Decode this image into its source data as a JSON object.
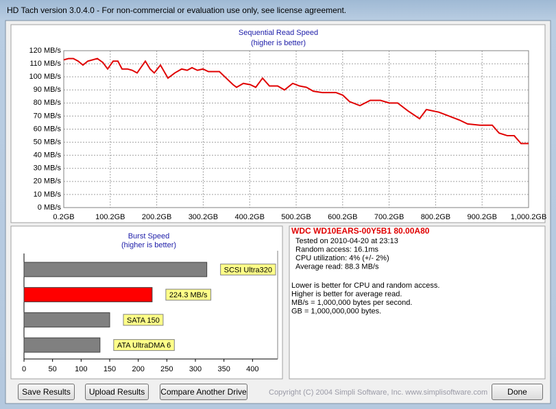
{
  "window": {
    "title": "HD Tach version 3.0.4.0  - For non-commercial or evaluation use only, see license agreement."
  },
  "chart_data": [
    {
      "type": "line",
      "title": "Sequential Read Speed",
      "subtitle": "(higher is better)",
      "color": "#e00000",
      "grid": true,
      "x": [
        0.2,
        10.5,
        20.8,
        31.2,
        41.5,
        51.8,
        62.1,
        72.5,
        84.3,
        94.6,
        106.4,
        116.7,
        125.6,
        137.4,
        147.7,
        158,
        175.7,
        186,
        194.9,
        208.2,
        224.4,
        239.2,
        253.9,
        265.7,
        276.1,
        287.8,
        299.6,
        311.4,
        335,
        349.7,
        364.5,
        371.9,
        386.6,
        401.4,
        413.2,
        427.9,
        442.7,
        460.4,
        475.1,
        492.8,
        507.6,
        522.3,
        537.1,
        556.3,
        585.8,
        600.5,
        615.3,
        637.4,
        659.5,
        681.6,
        700.8,
        718.5,
        740.6,
        765.7,
        780.4,
        807,
        829.1,
        851.2,
        868.9,
        895.5,
        922,
        936.8,
        954.5,
        969.2,
        984,
        1000.2
      ],
      "values": [
        113,
        114,
        114,
        112,
        109,
        112,
        113,
        114,
        111,
        106,
        112,
        112,
        106,
        106,
        105,
        103,
        112,
        106,
        103,
        109,
        99,
        103,
        106,
        105,
        107,
        105,
        106,
        104,
        104,
        99,
        94,
        92,
        95,
        94,
        92,
        99,
        93,
        93,
        90,
        95,
        93,
        92,
        89,
        88,
        88,
        86,
        81,
        78,
        82,
        82,
        80,
        80,
        74,
        68,
        75,
        73,
        70,
        67,
        64,
        63,
        63,
        57,
        55,
        55,
        49,
        49
      ],
      "xlim": [
        0.2,
        1000.2
      ],
      "xticks": [
        {
          "value": 0.2,
          "label": "0.2GB"
        },
        {
          "value": 100.2,
          "label": "100.2GB"
        },
        {
          "value": 200.2,
          "label": "200.2GB"
        },
        {
          "value": 300.2,
          "label": "300.2GB"
        },
        {
          "value": 400.2,
          "label": "400.2GB"
        },
        {
          "value": 500.2,
          "label": "500.2GB"
        },
        {
          "value": 600.2,
          "label": "600.2GB"
        },
        {
          "value": 700.2,
          "label": "700.2GB"
        },
        {
          "value": 800.2,
          "label": "800.2GB"
        },
        {
          "value": 900.2,
          "label": "900.2GB"
        },
        {
          "value": 1000.2,
          "label": "1,000.2GB"
        }
      ],
      "ylim": [
        0,
        120
      ],
      "yticks": [
        {
          "value": 0,
          "label": "0 MB/s"
        },
        {
          "value": 10,
          "label": "10 MB/s"
        },
        {
          "value": 20,
          "label": "20 MB/s"
        },
        {
          "value": 30,
          "label": "30 MB/s"
        },
        {
          "value": 40,
          "label": "40 MB/s"
        },
        {
          "value": 50,
          "label": "50 MB/s"
        },
        {
          "value": 60,
          "label": "60 MB/s"
        },
        {
          "value": 70,
          "label": "70 MB/s"
        },
        {
          "value": 80,
          "label": "80 MB/s"
        },
        {
          "value": 90,
          "label": "90 MB/s"
        },
        {
          "value": 100,
          "label": "100 MB/s"
        },
        {
          "value": 110,
          "label": "110 MB/s"
        },
        {
          "value": 120,
          "label": "120 MB/s"
        }
      ]
    },
    {
      "type": "hbar",
      "title": "Burst Speed",
      "subtitle": "(higher is better)",
      "grid": false,
      "categories": [
        "SCSI Ultra320",
        null,
        "SATA 150",
        "ATA UltraDMA 6"
      ],
      "values": [
        320,
        224.3,
        150,
        133
      ],
      "value_labels": [
        null,
        "224.3 MB/s",
        null,
        null
      ],
      "colors": [
        "#808080",
        "#ff0000",
        "#808080",
        "#808080"
      ],
      "label_color": "#ffff88",
      "xlim": [
        0,
        450
      ],
      "xticks": [
        0,
        50,
        100,
        150,
        200,
        250,
        300,
        350,
        400
      ]
    }
  ],
  "info": {
    "drive": "WDC WD10EARS-00Y5B1 80.00A80",
    "lines": [
      "Tested on 2010-04-20 at 23:13",
      "Random access: 16.1ms",
      "CPU utilization: 4% (+/- 2%)",
      "Average read: 88.3 MB/s"
    ],
    "notes": [
      "Lower is better for CPU and random access.",
      "Higher is better for average read.",
      "MB/s = 1,000,000 bytes per second.",
      "GB = 1,000,000,000 bytes."
    ]
  },
  "buttons": [
    "Save Results",
    "Upload Results",
    "Compare Another Drive",
    "Done"
  ],
  "copyright": "Copyright (C) 2004 Simpli Software, Inc. www.simplisoftware.com"
}
